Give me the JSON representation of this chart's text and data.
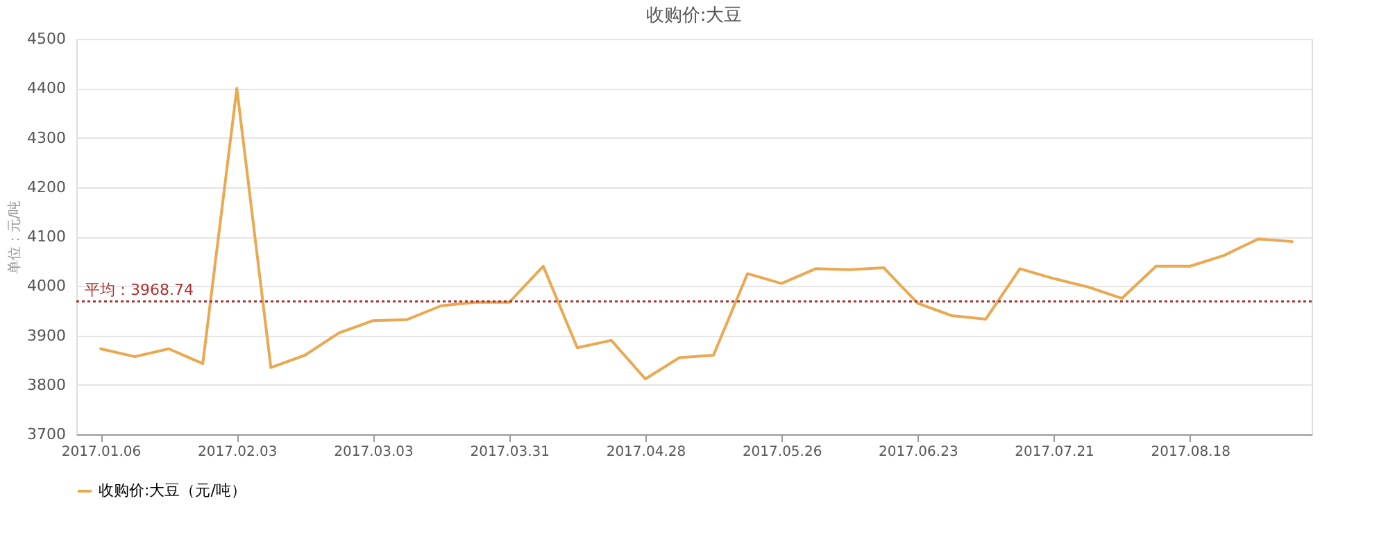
{
  "chart_data": {
    "type": "line",
    "title": "收购价:大豆",
    "ylabel": "单位：元/吨",
    "x": [
      "2017-01-06",
      "2017-01-13",
      "2017-01-20",
      "2017-01-27",
      "2017-02-03",
      "2017-02-10",
      "2017-02-17",
      "2017-02-24",
      "2017-03-03",
      "2017-03-10",
      "2017-03-17",
      "2017-03-24",
      "2017-03-31",
      "2017-04-07",
      "2017-04-14",
      "2017-04-21",
      "2017-04-28",
      "2017-05-05",
      "2017-05-12",
      "2017-05-19",
      "2017-05-26",
      "2017-06-02",
      "2017-06-09",
      "2017-06-16",
      "2017-06-23",
      "2017-06-30",
      "2017-07-07",
      "2017-07-14",
      "2017-07-21",
      "2017-07-28",
      "2017-08-04",
      "2017-08-11",
      "2017-08-18",
      "2017-08-25",
      "2017-09-01",
      "2017-09-08"
    ],
    "series": [
      {
        "name": "收购价:大豆（元/吨）",
        "color": "#eaa850",
        "values": [
          3873,
          3857,
          3873,
          3843,
          4400,
          3835,
          3860,
          3905,
          3930,
          3932,
          3960,
          3967,
          3967,
          4040,
          3875,
          3890,
          3812,
          3855,
          3860,
          4025,
          4005,
          4035,
          4033,
          4037,
          3965,
          3940,
          3933,
          4035,
          4015,
          3998,
          3975,
          4040,
          4040,
          4062,
          4095,
          4090
        ]
      }
    ],
    "xlim": [
      "2017-01-01",
      "2017-09-12"
    ],
    "xticks": [
      {
        "value": "2017-01-06",
        "label": "2017.01.06"
      },
      {
        "value": "2017-02-03",
        "label": "2017.02.03"
      },
      {
        "value": "2017-03-03",
        "label": "2017.03.03"
      },
      {
        "value": "2017-03-31",
        "label": "2017.03.31"
      },
      {
        "value": "2017-04-28",
        "label": "2017.04.28"
      },
      {
        "value": "2017-05-26",
        "label": "2017.05.26"
      },
      {
        "value": "2017-06-23",
        "label": "2017.06.23"
      },
      {
        "value": "2017-07-21",
        "label": "2017.07.21"
      },
      {
        "value": "2017-08-18",
        "label": "2017.08.18"
      }
    ],
    "ylim": [
      3700,
      4500
    ],
    "yticks": [
      3700,
      3800,
      3900,
      4000,
      4100,
      4200,
      4300,
      4400,
      4500
    ],
    "ref_lines": [
      {
        "axis": "y",
        "value": 3968.74,
        "label": "平均：3968.74",
        "color": "#b03030",
        "line_style": "dotted"
      }
    ],
    "grid": "y",
    "legend": "bottom",
    "marker": "none",
    "line_style": "solid"
  }
}
